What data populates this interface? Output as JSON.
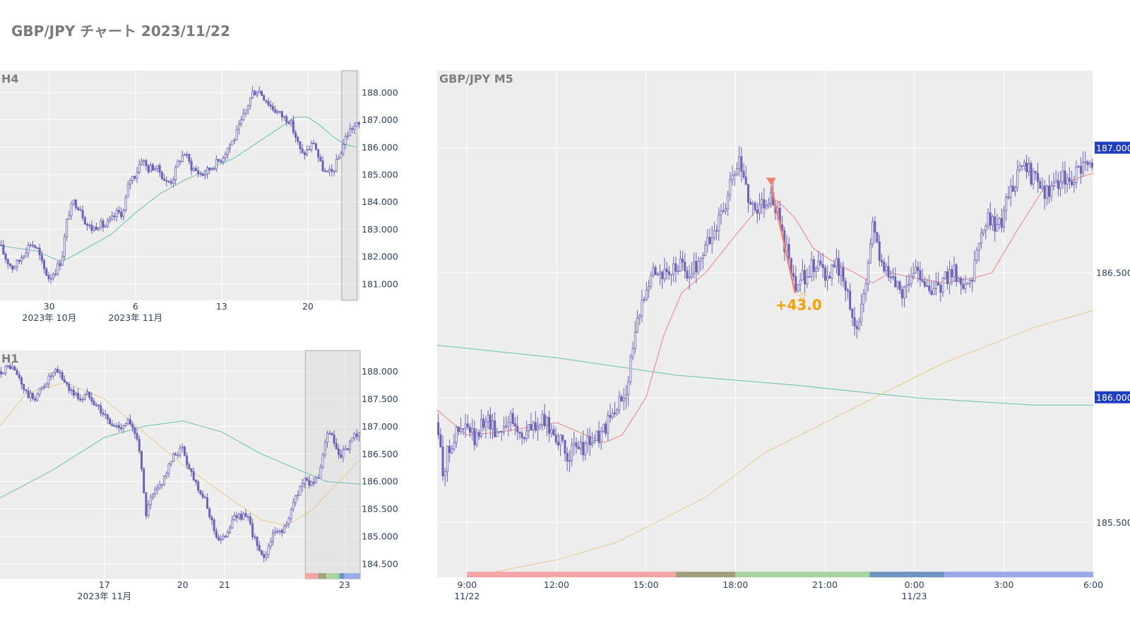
{
  "page_title": "GBP/JPY チャート 2023/11/22",
  "colors": {
    "candle": "#6b62b8",
    "panel_bg": "#ededed",
    "grid": "#ffffff",
    "ma_red": "#f08080",
    "ma_green": "#66c2a5",
    "ma_tan": "#e8c88a",
    "badge": "#1f3fbf",
    "entry_marker": "#f08070",
    "pnl": "#f5a000",
    "sessions": [
      "#f4a6a6",
      "#a3a07e",
      "#a8d4a0",
      "#6f96c0",
      "#9aaaea"
    ]
  },
  "chart_data": [
    {
      "id": "h4",
      "type": "candlestick",
      "title": "H4",
      "y_ticks": [
        "188.000",
        "187.000",
        "186.000",
        "185.000",
        "184.000",
        "183.000",
        "182.000",
        "181.000"
      ],
      "ylim": [
        180.4,
        188.8
      ],
      "x_ticks": [
        {
          "label": "30",
          "sub": "2023年 10月"
        },
        {
          "label": "6",
          "sub": "2023年 11月"
        },
        {
          "label": "13",
          "sub": ""
        },
        {
          "label": "20",
          "sub": ""
        }
      ],
      "x_tick_pos": [
        8,
        22,
        36,
        50
      ],
      "x_range": [
        0,
        58.5
      ],
      "highlight_range": [
        55.5,
        58.0
      ],
      "close_path": [
        [
          0,
          182.4
        ],
        [
          1,
          181.9
        ],
        [
          2,
          181.6
        ],
        [
          3,
          181.8
        ],
        [
          4,
          182.2
        ],
        [
          5,
          182.5
        ],
        [
          6,
          182.3
        ],
        [
          7,
          181.6
        ],
        [
          8,
          181.2
        ],
        [
          9,
          181.5
        ],
        [
          10,
          181.9
        ],
        [
          11,
          183.5
        ],
        [
          12,
          184.0
        ],
        [
          13,
          183.8
        ],
        [
          14,
          183.2
        ],
        [
          15,
          183.0
        ],
        [
          16,
          183.2
        ],
        [
          17,
          183.1
        ],
        [
          18,
          183.3
        ],
        [
          19,
          183.6
        ],
        [
          20,
          183.6
        ],
        [
          21,
          184.8
        ],
        [
          22,
          185.0
        ],
        [
          23,
          185.6
        ],
        [
          24,
          185.2
        ],
        [
          25,
          185.3
        ],
        [
          26,
          185.1
        ],
        [
          27,
          184.7
        ],
        [
          28,
          184.8
        ],
        [
          29,
          185.5
        ],
        [
          30,
          185.8
        ],
        [
          31,
          185.3
        ],
        [
          32,
          185.1
        ],
        [
          33,
          185.0
        ],
        [
          34,
          185.2
        ],
        [
          35,
          185.4
        ],
        [
          36,
          185.6
        ],
        [
          37,
          186.0
        ],
        [
          38,
          186.3
        ],
        [
          39,
          186.8
        ],
        [
          40,
          187.4
        ],
        [
          41,
          188.0
        ],
        [
          42,
          188.1
        ],
        [
          43,
          187.8
        ],
        [
          44,
          187.5
        ],
        [
          45,
          187.3
        ],
        [
          46,
          187.1
        ],
        [
          47,
          187.0
        ],
        [
          48,
          186.4
        ],
        [
          49,
          185.7
        ],
        [
          50,
          185.9
        ],
        [
          51,
          186.2
        ],
        [
          52,
          185.4
        ],
        [
          53,
          185.0
        ],
        [
          54,
          185.1
        ],
        [
          55,
          185.6
        ],
        [
          56,
          186.3
        ],
        [
          57,
          186.7
        ],
        [
          58,
          186.8
        ]
      ],
      "ma_green": [
        [
          0,
          182.4
        ],
        [
          6,
          182.2
        ],
        [
          10,
          181.8
        ],
        [
          14,
          182.3
        ],
        [
          18,
          182.8
        ],
        [
          22,
          183.6
        ],
        [
          26,
          184.3
        ],
        [
          30,
          184.8
        ],
        [
          34,
          185.2
        ],
        [
          38,
          185.6
        ],
        [
          42,
          186.2
        ],
        [
          46,
          186.8
        ],
        [
          48,
          187.1
        ],
        [
          50,
          187.1
        ],
        [
          52,
          186.8
        ],
        [
          54,
          186.4
        ],
        [
          56,
          186.1
        ],
        [
          58,
          186.0
        ]
      ]
    },
    {
      "id": "h1",
      "type": "candlestick",
      "title": "H1",
      "y_ticks": [
        "188.000",
        "187.500",
        "187.000",
        "186.500",
        "186.000",
        "185.500",
        "185.000",
        "184.500"
      ],
      "ylim": [
        184.23,
        188.38
      ],
      "x_ticks": [
        {
          "label": "17",
          "sub": "2023年 11月"
        },
        {
          "label": "20",
          "sub": ""
        },
        {
          "label": "21",
          "sub": ""
        },
        {
          "label": "23",
          "sub": ""
        }
      ],
      "x_tick_pos": [
        40,
        70,
        86,
        132
      ],
      "x_range": [
        0,
        138
      ],
      "highlight_range": [
        117,
        138
      ],
      "sessions_strip": [
        [
          117,
          122
        ],
        [
          122,
          125
        ],
        [
          125,
          130
        ],
        [
          130,
          132
        ],
        [
          132,
          138
        ]
      ],
      "close_path": [
        [
          0,
          188.0
        ],
        [
          4,
          188.1
        ],
        [
          7,
          187.9
        ],
        [
          10,
          187.6
        ],
        [
          13,
          187.5
        ],
        [
          16,
          187.7
        ],
        [
          19,
          187.9
        ],
        [
          22,
          188.0
        ],
        [
          25,
          187.8
        ],
        [
          28,
          187.6
        ],
        [
          31,
          187.5
        ],
        [
          34,
          187.6
        ],
        [
          37,
          187.4
        ],
        [
          40,
          187.2
        ],
        [
          43,
          187.0
        ],
        [
          46,
          187.0
        ],
        [
          49,
          187.1
        ],
        [
          51,
          186.9
        ],
        [
          53,
          186.8
        ],
        [
          55,
          185.8
        ],
        [
          56,
          185.4
        ],
        [
          58,
          185.7
        ],
        [
          61,
          185.9
        ],
        [
          64,
          186.2
        ],
        [
          67,
          186.5
        ],
        [
          70,
          186.6
        ],
        [
          72,
          186.3
        ],
        [
          75,
          186.0
        ],
        [
          78,
          185.7
        ],
        [
          81,
          185.3
        ],
        [
          83,
          185.0
        ],
        [
          85,
          184.9
        ],
        [
          87,
          185.1
        ],
        [
          89,
          185.3
        ],
        [
          92,
          185.4
        ],
        [
          95,
          185.3
        ],
        [
          98,
          184.9
        ],
        [
          100,
          184.6
        ],
        [
          102,
          184.7
        ],
        [
          104,
          185.0
        ],
        [
          107,
          185.1
        ],
        [
          110,
          185.2
        ],
        [
          113,
          185.7
        ],
        [
          116,
          186.0
        ],
        [
          119,
          186.0
        ],
        [
          122,
          186.0
        ],
        [
          124,
          186.6
        ],
        [
          126,
          186.9
        ],
        [
          128,
          186.7
        ],
        [
          130,
          186.4
        ],
        [
          133,
          186.6
        ],
        [
          136,
          186.8
        ],
        [
          138,
          186.9
        ]
      ],
      "ma_green": [
        [
          0,
          185.7
        ],
        [
          20,
          186.2
        ],
        [
          40,
          186.8
        ],
        [
          55,
          187.0
        ],
        [
          70,
          187.1
        ],
        [
          85,
          186.9
        ],
        [
          100,
          186.5
        ],
        [
          115,
          186.2
        ],
        [
          125,
          186.0
        ],
        [
          138,
          185.95
        ]
      ],
      "ma_tan": [
        [
          0,
          187.0
        ],
        [
          10,
          187.6
        ],
        [
          25,
          187.8
        ],
        [
          40,
          187.5
        ],
        [
          55,
          186.9
        ],
        [
          70,
          186.3
        ],
        [
          85,
          185.8
        ],
        [
          100,
          185.3
        ],
        [
          110,
          185.2
        ],
        [
          120,
          185.5
        ],
        [
          130,
          186.0
        ],
        [
          138,
          186.4
        ]
      ]
    },
    {
      "id": "m5",
      "type": "candlestick",
      "title": "GBP/JPY M5",
      "y_ticks": [
        "187.000",
        "186.500",
        "186.000",
        "185.500"
      ],
      "badge_ticks": [
        "187.000",
        "186.000"
      ],
      "ylim": [
        185.28,
        187.31
      ],
      "x_ticks": [
        {
          "label": "9:00",
          "sub": "11/22"
        },
        {
          "label": "12:00",
          "sub": ""
        },
        {
          "label": "15:00",
          "sub": ""
        },
        {
          "label": "18:00",
          "sub": ""
        },
        {
          "label": "21:00",
          "sub": ""
        },
        {
          "label": "0:00",
          "sub": "11/23"
        },
        {
          "label": "3:00",
          "sub": ""
        },
        {
          "label": "6:00",
          "sub": ""
        }
      ],
      "x_tick_pos": [
        9,
        12,
        15,
        18,
        21,
        24,
        27,
        30
      ],
      "x_range": [
        8.0,
        30.0
      ],
      "sessions_strip": [
        [
          9,
          16
        ],
        [
          16,
          18
        ],
        [
          18,
          22.5
        ],
        [
          22.5,
          25
        ],
        [
          25,
          30
        ]
      ],
      "close_path": [
        [
          8.0,
          185.9
        ],
        [
          8.2,
          185.7
        ],
        [
          8.4,
          185.8
        ],
        [
          8.6,
          185.85
        ],
        [
          9.0,
          185.88
        ],
        [
          9.3,
          185.82
        ],
        [
          9.6,
          185.93
        ],
        [
          10.0,
          185.86
        ],
        [
          10.4,
          185.92
        ],
        [
          10.8,
          185.85
        ],
        [
          11.2,
          185.88
        ],
        [
          11.6,
          185.9
        ],
        [
          12.0,
          185.85
        ],
        [
          12.3,
          185.77
        ],
        [
          12.7,
          185.79
        ],
        [
          13.1,
          185.82
        ],
        [
          13.5,
          185.85
        ],
        [
          13.9,
          185.93
        ],
        [
          14.3,
          186.02
        ],
        [
          14.6,
          186.22
        ],
        [
          15.0,
          186.46
        ],
        [
          15.3,
          186.52
        ],
        [
          15.7,
          186.48
        ],
        [
          16.1,
          186.53
        ],
        [
          16.5,
          186.49
        ],
        [
          16.9,
          186.58
        ],
        [
          17.3,
          186.67
        ],
        [
          17.7,
          186.79
        ],
        [
          18.1,
          186.95
        ],
        [
          18.4,
          186.82
        ],
        [
          18.7,
          186.75
        ],
        [
          19.0,
          186.8
        ],
        [
          19.2,
          186.8
        ],
        [
          19.4,
          186.75
        ],
        [
          19.6,
          186.62
        ],
        [
          19.8,
          186.55
        ],
        [
          20.0,
          186.42
        ],
        [
          20.2,
          186.47
        ],
        [
          20.5,
          186.52
        ],
        [
          20.8,
          186.55
        ],
        [
          21.1,
          186.48
        ],
        [
          21.4,
          186.53
        ],
        [
          21.7,
          186.45
        ],
        [
          21.9,
          186.35
        ],
        [
          22.1,
          186.27
        ],
        [
          22.4,
          186.5
        ],
        [
          22.6,
          186.7
        ],
        [
          22.9,
          186.55
        ],
        [
          23.2,
          186.48
        ],
        [
          23.5,
          186.42
        ],
        [
          23.8,
          186.46
        ],
        [
          24.1,
          186.52
        ],
        [
          24.4,
          186.46
        ],
        [
          24.7,
          186.42
        ],
        [
          25.0,
          186.47
        ],
        [
          25.3,
          186.52
        ],
        [
          25.6,
          186.45
        ],
        [
          25.9,
          186.48
        ],
        [
          26.2,
          186.62
        ],
        [
          26.5,
          186.72
        ],
        [
          26.8,
          186.67
        ],
        [
          27.1,
          186.78
        ],
        [
          27.4,
          186.88
        ],
        [
          27.7,
          186.92
        ],
        [
          28.0,
          186.88
        ],
        [
          28.3,
          186.82
        ],
        [
          28.6,
          186.85
        ],
        [
          28.9,
          186.87
        ],
        [
          29.2,
          186.88
        ],
        [
          29.5,
          186.9
        ],
        [
          29.8,
          186.92
        ],
        [
          30.0,
          186.93
        ]
      ],
      "ma_red": [
        [
          8.0,
          185.95
        ],
        [
          9.0,
          185.85
        ],
        [
          10.0,
          185.86
        ],
        [
          11.0,
          185.88
        ],
        [
          12.0,
          185.9
        ],
        [
          13.0,
          185.85
        ],
        [
          13.6,
          185.82
        ],
        [
          14.2,
          185.85
        ],
        [
          15.0,
          186.0
        ],
        [
          15.6,
          186.25
        ],
        [
          16.2,
          186.42
        ],
        [
          17.0,
          186.5
        ],
        [
          18.0,
          186.65
        ],
        [
          18.7,
          186.75
        ],
        [
          19.4,
          186.79
        ],
        [
          20.0,
          186.72
        ],
        [
          20.6,
          186.6
        ],
        [
          21.2,
          186.55
        ],
        [
          22.0,
          186.5
        ],
        [
          22.6,
          186.46
        ],
        [
          23.2,
          186.5
        ],
        [
          24.0,
          186.48
        ],
        [
          25.0,
          186.46
        ],
        [
          26.0,
          186.48
        ],
        [
          26.6,
          186.5
        ],
        [
          27.5,
          186.68
        ],
        [
          28.3,
          186.83
        ],
        [
          29.0,
          186.86
        ],
        [
          30.0,
          186.9
        ]
      ],
      "ma_green": [
        [
          8.0,
          186.21
        ],
        [
          12.0,
          186.16
        ],
        [
          16.0,
          186.09
        ],
        [
          20.0,
          186.05
        ],
        [
          24.0,
          186.0
        ],
        [
          28.0,
          185.97
        ],
        [
          30.0,
          185.97
        ]
      ],
      "ma_tan": [
        [
          9.0,
          185.28
        ],
        [
          12.0,
          185.35
        ],
        [
          14.0,
          185.42
        ],
        [
          17.0,
          185.6
        ],
        [
          19.0,
          185.78
        ],
        [
          22.0,
          185.96
        ],
        [
          25.0,
          186.14
        ],
        [
          28.0,
          186.28
        ],
        [
          30.0,
          186.35
        ]
      ],
      "trade": {
        "entry": [
          19.2,
          186.85
        ],
        "exit": [
          20.0,
          186.42
        ],
        "pnl_label": "+43.0"
      }
    }
  ]
}
